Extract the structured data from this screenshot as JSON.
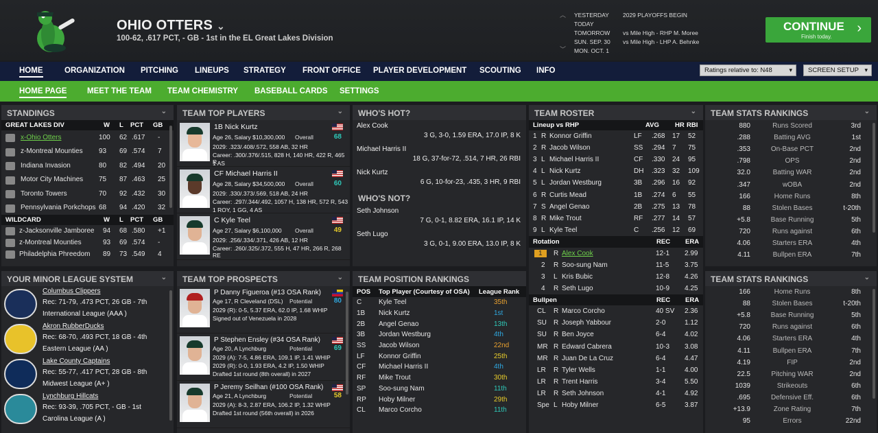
{
  "header": {
    "team_name": "OHIO OTTERS",
    "record_line": "100-62, .617 PCT, - GB - 1st in the EL Great Lakes Division"
  },
  "schedule": [
    {
      "day": "YESTERDAY",
      "event": "2029 PLAYOFFS BEGIN"
    },
    {
      "day": "TODAY",
      "event": ""
    },
    {
      "day": "TOMORROW",
      "event": "vs Mile High - RHP M. Moree"
    },
    {
      "day": "SUN. SEP. 30",
      "event": "vs Mile High - LHP A. Behnke"
    },
    {
      "day": "MON. OCT. 1",
      "event": ""
    }
  ],
  "continue": {
    "label": "CONTINUE",
    "sub": "Finish today."
  },
  "nav": {
    "items": [
      "HOME",
      "ORGANIZATION",
      "PITCHING",
      "LINEUPS",
      "STRATEGY",
      "FRONT OFFICE",
      "PLAYER DEVELOPMENT",
      "SCOUTING",
      "INFO"
    ],
    "ratings": "Ratings relative to: N48",
    "screen_setup": "SCREEN SETUP"
  },
  "subnav": {
    "items": [
      "HOME PAGE",
      "MEET THE TEAM",
      "TEAM CHEMISTRY",
      "BASEBALL CARDS",
      "SETTINGS"
    ]
  },
  "standings": {
    "title": "STANDINGS",
    "division": "GREAT LAKES DIV",
    "wildcard": "WILDCARD",
    "cols": [
      "W",
      "L",
      "PCT",
      "GB"
    ],
    "div_rows": [
      {
        "team": "x-Ohio Otters",
        "w": "100",
        "l": "62",
        "pct": ".617",
        "gb": "-"
      },
      {
        "team": "z-Montreal Mounties",
        "w": "93",
        "l": "69",
        "pct": ".574",
        "gb": "7"
      },
      {
        "team": "Indiana Invasion",
        "w": "80",
        "l": "82",
        "pct": ".494",
        "gb": "20"
      },
      {
        "team": "Motor City Machines",
        "w": "75",
        "l": "87",
        "pct": ".463",
        "gb": "25"
      },
      {
        "team": "Toronto Towers",
        "w": "70",
        "l": "92",
        "pct": ".432",
        "gb": "30"
      },
      {
        "team": "Pennsylvania Porkchops",
        "w": "68",
        "l": "94",
        "pct": ".420",
        "gb": "32"
      }
    ],
    "wc_rows": [
      {
        "team": "z-Jacksonville Jamboree",
        "w": "94",
        "l": "68",
        "pct": ".580",
        "gb": "+1"
      },
      {
        "team": "z-Montreal Mounties",
        "w": "93",
        "l": "69",
        "pct": ".574",
        "gb": "-"
      },
      {
        "team": "Philadelphia Phreedom",
        "w": "89",
        "l": "73",
        "pct": ".549",
        "gb": "4"
      }
    ]
  },
  "top_players": {
    "title": "TEAM TOP PLAYERS",
    "players": [
      {
        "name": "1B Nick Kurtz",
        "info": "Age 26, Salary $10,300,000",
        "ovl": "Overall",
        "val": "68",
        "line1": "2029: .323/.408/.572, 558 AB, 32 HR",
        "line2": "Career: .300/.376/.515, 828 H, 140 HR, 422 R, 465 R",
        "line3": "1 AS"
      },
      {
        "name": "CF Michael Harris II",
        "info": "Age 28, Salary $34,500,000",
        "ovl": "Overall",
        "val": "60",
        "line1": "2029: .330/.373/.569, 518 AB, 24 HR",
        "line2": "Career: .297/.344/.492, 1057 H, 138 HR, 572 R, 543",
        "line3": "1 ROY, 1 GG, 4 AS"
      },
      {
        "name": "C Kyle Teel",
        "info": "Age 27, Salary $6,100,000",
        "ovl": "Overall",
        "val": "49",
        "line1": "2029: .256/.334/.371, 426 AB, 12 HR",
        "line2": "Career: .260/.325/.372, 555 H, 47 HR, 266 R, 268 RE",
        "line3": ""
      }
    ]
  },
  "whos_hot": {
    "title": "WHO'S HOT?",
    "items": [
      {
        "name": "Alex Cook",
        "stat": "3 G, 3-0, 1.59 ERA, 17.0 IP, 8 K"
      },
      {
        "name": "Michael Harris II",
        "stat": "18 G, 37-for-72, .514, 7 HR, 26 RBI"
      },
      {
        "name": "Nick Kurtz",
        "stat": "6 G, 10-for-23, .435, 3 HR, 9 RBI"
      }
    ]
  },
  "whos_not": {
    "title": "WHO'S NOT?",
    "items": [
      {
        "name": "Seth Johnson",
        "stat": "7 G, 0-1, 8.82 ERA, 16.1 IP, 14 K"
      },
      {
        "name": "Seth Lugo",
        "stat": "3 G, 0-1, 9.00 ERA, 13.0 IP, 8 K"
      }
    ]
  },
  "roster": {
    "title": "TEAM ROSTER",
    "lineup_label": "Lineup vs RHP",
    "lineup_cols": [
      "AVG",
      "HR",
      "RBI"
    ],
    "lineup": [
      {
        "n": "1",
        "h": "R",
        "name": "Konnor Griffin",
        "pos": "LF",
        "avg": ".268",
        "hr": "17",
        "rbi": "52"
      },
      {
        "n": "2",
        "h": "R",
        "name": "Jacob Wilson",
        "pos": "SS",
        "avg": ".294",
        "hr": "7",
        "rbi": "75"
      },
      {
        "n": "3",
        "h": "L",
        "name": "Michael Harris II",
        "pos": "CF",
        "avg": ".330",
        "hr": "24",
        "rbi": "95"
      },
      {
        "n": "4",
        "h": "L",
        "name": "Nick Kurtz",
        "pos": "DH",
        "avg": ".323",
        "hr": "32",
        "rbi": "109"
      },
      {
        "n": "5",
        "h": "L",
        "name": "Jordan Westburg",
        "pos": "3B",
        "avg": ".296",
        "hr": "16",
        "rbi": "92"
      },
      {
        "n": "6",
        "h": "R",
        "name": "Curtis Mead",
        "pos": "1B",
        "avg": ".274",
        "hr": "6",
        "rbi": "55"
      },
      {
        "n": "7",
        "h": "S",
        "name": "Angel Genao",
        "pos": "2B",
        "avg": ".275",
        "hr": "13",
        "rbi": "78"
      },
      {
        "n": "8",
        "h": "R",
        "name": "Mike Trout",
        "pos": "RF",
        "avg": ".277",
        "hr": "14",
        "rbi": "57"
      },
      {
        "n": "9",
        "h": "L",
        "name": "Kyle Teel",
        "pos": "C",
        "avg": ".256",
        "hr": "12",
        "rbi": "69"
      }
    ],
    "rotation_label": "Rotation",
    "rot_cols": [
      "REC",
      "ERA"
    ],
    "rotation": [
      {
        "n": "1",
        "h": "R",
        "name": "Alex Cook",
        "rec": "12-1",
        "era": "2.99"
      },
      {
        "n": "2",
        "h": "R",
        "name": "Soo-sung Nam",
        "rec": "11-5",
        "era": "3.75"
      },
      {
        "n": "3",
        "h": "L",
        "name": "Kris Bubic",
        "rec": "12-8",
        "era": "4.26"
      },
      {
        "n": "4",
        "h": "R",
        "name": "Seth Lugo",
        "rec": "10-9",
        "era": "4.25"
      }
    ],
    "bullpen_label": "Bullpen",
    "bullpen": [
      {
        "n": "CL",
        "h": "R",
        "name": "Marco Corcho",
        "rec": "40 SV",
        "era": "2.36"
      },
      {
        "n": "SU",
        "h": "R",
        "name": "Joseph Yabbour",
        "rec": "2-0",
        "era": "1.12"
      },
      {
        "n": "SU",
        "h": "R",
        "name": "Ben Joyce",
        "rec": "6-4",
        "era": "4.02"
      },
      {
        "n": "MR",
        "h": "R",
        "name": "Edward Cabrera",
        "rec": "10-3",
        "era": "3.08"
      },
      {
        "n": "MR",
        "h": "R",
        "name": "Juan De La Cruz",
        "rec": "6-4",
        "era": "4.47"
      },
      {
        "n": "LR",
        "h": "R",
        "name": "Tyler Wells",
        "rec": "1-1",
        "era": "4.00"
      },
      {
        "n": "LR",
        "h": "R",
        "name": "Trent Harris",
        "rec": "3-4",
        "era": "5.50"
      },
      {
        "n": "LR",
        "h": "R",
        "name": "Seth Johnson",
        "rec": "4-1",
        "era": "4.92"
      },
      {
        "n": "Spe",
        "h": "L",
        "name": "Hoby Milner",
        "rec": "6-5",
        "era": "3.87"
      }
    ]
  },
  "stats1": {
    "title": "TEAM STATS RANKINGS",
    "rows": [
      [
        "880",
        "Runs Scored",
        "3rd"
      ],
      [
        ".288",
        "Batting AVG",
        "1st"
      ],
      [
        ".353",
        "On-Base PCT",
        "2nd"
      ],
      [
        ".798",
        "OPS",
        "2nd"
      ],
      [
        "32.0",
        "Batting WAR",
        "2nd"
      ],
      [
        ".347",
        "wOBA",
        "2nd"
      ],
      [
        "166",
        "Home Runs",
        "8th"
      ],
      [
        "88",
        "Stolen Bases",
        "t-20th"
      ],
      [
        "+5.8",
        "Base Running",
        "5th"
      ],
      [
        "720",
        "Runs against",
        "6th"
      ],
      [
        "4.06",
        "Starters ERA",
        "4th"
      ],
      [
        "4.11",
        "Bullpen ERA",
        "7th"
      ]
    ]
  },
  "stats2": {
    "title": "TEAM STATS RANKINGS",
    "rows": [
      [
        "166",
        "Home Runs",
        "8th"
      ],
      [
        "88",
        "Stolen Bases",
        "t-20th"
      ],
      [
        "+5.8",
        "Base Running",
        "5th"
      ],
      [
        "720",
        "Runs against",
        "6th"
      ],
      [
        "4.06",
        "Starters ERA",
        "4th"
      ],
      [
        "4.11",
        "Bullpen ERA",
        "7th"
      ],
      [
        "4.19",
        "FIP",
        "2nd"
      ],
      [
        "22.5",
        "Pitching WAR",
        "2nd"
      ],
      [
        "1039",
        "Strikeouts",
        "6th"
      ],
      [
        ".695",
        "Defensive Eff.",
        "6th"
      ],
      [
        "+13.9",
        "Zone Rating",
        "7th"
      ],
      [
        "95",
        "Errors",
        "22nd"
      ]
    ]
  },
  "minor": {
    "title": "YOUR MINOR LEAGUE SYSTEM",
    "teams": [
      {
        "name": "Columbus Clippers",
        "rec": "Rec: 71-79, .473 PCT, 26 GB - 7th",
        "lg": "International League (AAA )"
      },
      {
        "name": "Akron RubberDucks",
        "rec": "Rec: 68-70, .493 PCT, 18 GB - 4th",
        "lg": "Eastern League (AA )"
      },
      {
        "name": "Lake County Captains",
        "rec": "Rec: 55-77, .417 PCT, 28 GB - 8th",
        "lg": "Midwest League (A+ )"
      },
      {
        "name": "Lynchburg Hillcats",
        "rec": "Rec: 93-39, .705 PCT, - GB - 1st",
        "lg": "Carolina League (A )"
      }
    ]
  },
  "prospects": {
    "title": "TEAM TOP PROSPECTS",
    "items": [
      {
        "name": "P Danny Figueroa (#13 OSA Rank)",
        "info": "Age 17, R Cleveland (DSL)",
        "pot": "Potential",
        "val": "80",
        "line1": "2029 (R): 0-5, 5.37 ERA, 62.0 IP, 1.68 WHIP",
        "line2": "Signed out of Venezuela in 2028"
      },
      {
        "name": "P Stephen Ensley (#34 OSA Rank)",
        "info": "Age 20, A Lynchburg",
        "pot": "Potential",
        "val": "69",
        "line1": "2029 (A): 7-5, 4.86 ERA, 109.1 IP, 1.41 WHIP",
        "line2": "2029 (R): 0-0, 1.93 ERA, 4.2 IP, 1.50 WHIP",
        "line3": "Drafted 1st round (8th overall) in 2027"
      },
      {
        "name": "P Jeremy Seilhan (#100 OSA Rank)",
        "info": "Age 21, A Lynchburg",
        "pot": "Potential",
        "val": "58",
        "line1": "2029 (A): 8-3, 2.87 ERA, 106.2 IP, 1.32 WHIP",
        "line2": "Drafted 1st round (56th overall) in 2026"
      }
    ]
  },
  "positions": {
    "title": "TEAM POSITION RANKINGS",
    "cols": [
      "POS",
      "Top Player (Courtesy of OSA)",
      "League Rank"
    ],
    "rows": [
      [
        "C",
        "Kyle Teel",
        "35th"
      ],
      [
        "1B",
        "Nick Kurtz",
        "1st"
      ],
      [
        "2B",
        "Angel Genao",
        "13th"
      ],
      [
        "3B",
        "Jordan Westburg",
        "4th"
      ],
      [
        "SS",
        "Jacob Wilson",
        "22nd"
      ],
      [
        "LF",
        "Konnor Griffin",
        "25th"
      ],
      [
        "CF",
        "Michael Harris II",
        "4th"
      ],
      [
        "RF",
        "Mike Trout",
        "30th"
      ],
      [
        "SP",
        "Soo-sung Nam",
        "11th"
      ],
      [
        "RP",
        "Hoby Milner",
        "29th"
      ],
      [
        "CL",
        "Marco Corcho",
        "11th"
      ]
    ]
  }
}
